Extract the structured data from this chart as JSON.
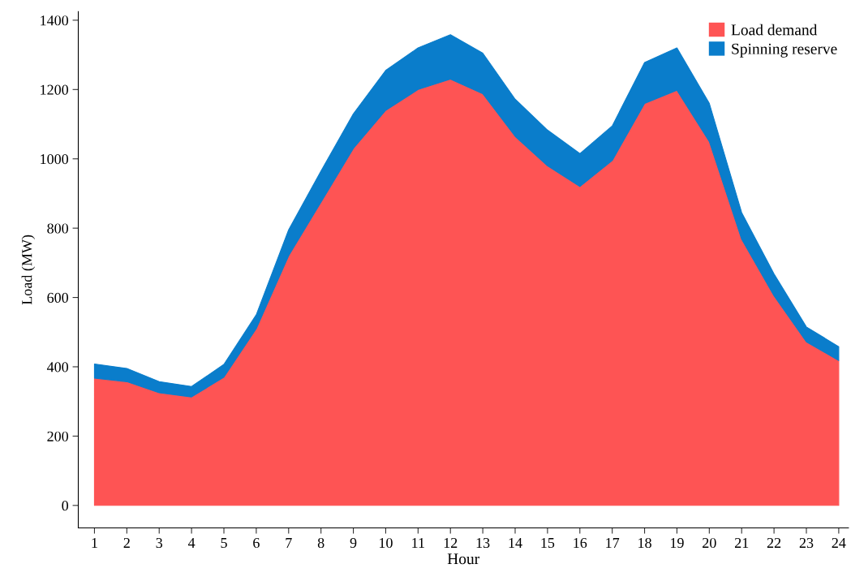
{
  "chart_data": {
    "type": "area",
    "stacked": true,
    "xlabel": "Hour",
    "ylabel": "Load (MW)",
    "x": [
      1,
      2,
      3,
      4,
      5,
      6,
      7,
      8,
      9,
      10,
      11,
      12,
      13,
      14,
      15,
      16,
      17,
      18,
      19,
      20,
      21,
      22,
      23,
      24
    ],
    "xlim": [
      0.5,
      24.3
    ],
    "xticks": [
      1,
      2,
      3,
      4,
      5,
      6,
      7,
      8,
      9,
      10,
      11,
      12,
      13,
      14,
      15,
      16,
      17,
      18,
      19,
      20,
      21,
      22,
      23,
      24
    ],
    "ylim": [
      -65,
      1425
    ],
    "yticks": [
      0,
      200,
      400,
      600,
      800,
      1000,
      1200,
      1400
    ],
    "series": [
      {
        "name": "Load demand",
        "color": "#fe5454",
        "values": [
          367,
          357,
          325,
          313,
          370,
          510,
          720,
          875,
          1030,
          1140,
          1200,
          1230,
          1188,
          1065,
          980,
          920,
          995,
          1160,
          1198,
          1050,
          768,
          605,
          472,
          418
        ]
      },
      {
        "name": "Spinning reserve",
        "color": "#0a7dcb",
        "values": [
          41,
          38,
          32,
          30,
          37,
          40,
          75,
          90,
          100,
          115,
          120,
          128,
          117,
          107,
          103,
          95,
          100,
          118,
          122,
          110,
          77,
          63,
          43,
          40
        ]
      }
    ],
    "legend": "top right",
    "grid": false
  }
}
